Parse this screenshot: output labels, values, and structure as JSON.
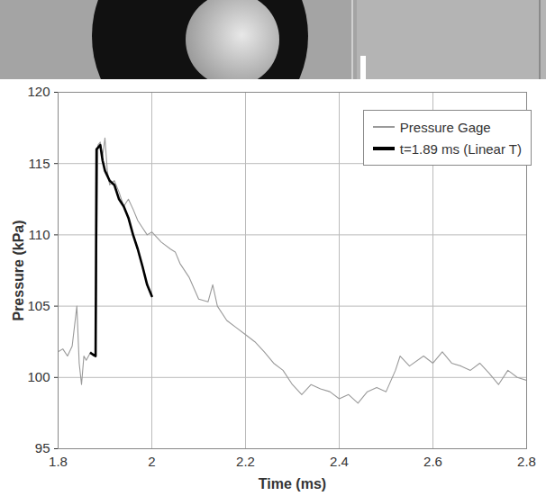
{
  "chart_data": {
    "type": "line",
    "x_label": "Time (ms)",
    "y_label": "Pressure (kPa)",
    "xlim": [
      1.8,
      2.8
    ],
    "ylim": [
      95,
      120
    ],
    "xticks": [
      1.8,
      2,
      2.2,
      2.4,
      2.6,
      2.8
    ],
    "yticks": [
      95,
      100,
      105,
      110,
      115,
      120
    ],
    "grid": true,
    "legend": "top-right",
    "series": [
      {
        "name": "Pressure Gage",
        "color": "#9a9a9a",
        "x": [
          1.8,
          1.81,
          1.82,
          1.83,
          1.84,
          1.845,
          1.85,
          1.855,
          1.86,
          1.87,
          1.875,
          1.88,
          1.885,
          1.89,
          1.895,
          1.9,
          1.905,
          1.91,
          1.92,
          1.93,
          1.94,
          1.95,
          1.96,
          1.97,
          1.98,
          1.99,
          2.0,
          2.02,
          2.04,
          2.05,
          2.06,
          2.08,
          2.1,
          2.12,
          2.13,
          2.14,
          2.16,
          2.18,
          2.2,
          2.22,
          2.24,
          2.26,
          2.28,
          2.3,
          2.32,
          2.34,
          2.36,
          2.38,
          2.4,
          2.42,
          2.44,
          2.46,
          2.48,
          2.5,
          2.52,
          2.53,
          2.55,
          2.58,
          2.6,
          2.62,
          2.64,
          2.66,
          2.68,
          2.7,
          2.72,
          2.74,
          2.76,
          2.78,
          2.8
        ],
        "values": [
          101.8,
          102.0,
          101.5,
          102.2,
          105.0,
          101.0,
          99.5,
          101.5,
          101.2,
          101.8,
          101.5,
          101.5,
          116.3,
          116.5,
          115.5,
          116.8,
          114.5,
          113.5,
          113.8,
          113.0,
          112.0,
          112.5,
          111.8,
          111.0,
          110.5,
          110.0,
          110.2,
          109.5,
          109.0,
          108.8,
          108.0,
          107.0,
          105.5,
          105.3,
          106.5,
          105.0,
          104.0,
          103.5,
          103.0,
          102.5,
          101.8,
          101.0,
          100.5,
          99.5,
          98.8,
          99.5,
          99.2,
          99.0,
          98.5,
          98.8,
          98.2,
          99.0,
          99.3,
          99.0,
          100.5,
          101.5,
          100.8,
          101.5,
          101.0,
          101.8,
          101.0,
          100.8,
          100.5,
          101.0,
          100.3,
          99.5,
          100.5,
          100.0,
          99.8
        ]
      },
      {
        "name": "t=1.89 ms (Linear T)",
        "color": "#000000",
        "x": [
          1.87,
          1.88,
          1.882,
          1.89,
          1.895,
          1.9,
          1.91,
          1.92,
          1.93,
          1.94,
          1.95,
          1.96,
          1.97,
          1.98,
          1.99,
          2.0
        ],
        "values": [
          101.7,
          101.5,
          116.0,
          116.3,
          115.2,
          114.5,
          113.8,
          113.5,
          112.5,
          112.0,
          111.2,
          110.0,
          109.0,
          107.8,
          106.5,
          105.7
        ]
      }
    ]
  }
}
